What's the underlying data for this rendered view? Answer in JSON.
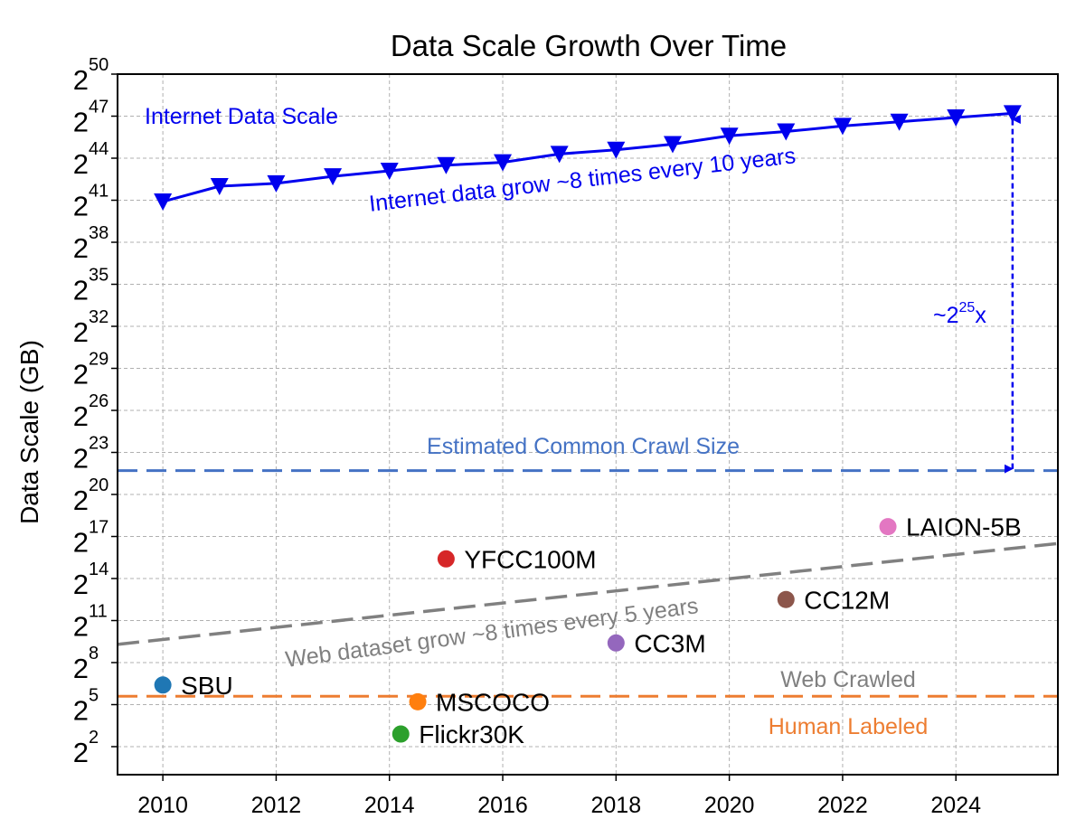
{
  "chart_data": {
    "type": "scatter",
    "title": "Data Scale Growth Over Time",
    "xlabel": "",
    "ylabel": "Data Scale (GB)",
    "xlim": [
      2009.2,
      2025.8
    ],
    "ylim": [
      0,
      50
    ],
    "y_scale": "log2",
    "x_ticks": [
      2010,
      2012,
      2014,
      2016,
      2018,
      2020,
      2022,
      2024
    ],
    "x_tick_labels": [
      "2010",
      "2012",
      "2014",
      "2016",
      "2018",
      "2020",
      "2022",
      "2024"
    ],
    "y_ticks": [
      2,
      5,
      8,
      11,
      14,
      17,
      20,
      23,
      26,
      29,
      32,
      35,
      38,
      41,
      44,
      47,
      50
    ],
    "y_tick_base": "2",
    "y_tick_exponents": [
      "2",
      "5",
      "8",
      "11",
      "14",
      "17",
      "20",
      "23",
      "26",
      "29",
      "32",
      "35",
      "38",
      "41",
      "44",
      "47",
      "50"
    ],
    "grid": true,
    "internet_series": {
      "name": "Internet Data Scale",
      "color": "#0000ee",
      "marker": "down-triangle",
      "x": [
        2010,
        2011,
        2012,
        2013,
        2014,
        2015,
        2016,
        2017,
        2018,
        2019,
        2020,
        2021,
        2022,
        2023,
        2024,
        2025
      ],
      "y": [
        40.9,
        42.0,
        42.2,
        42.7,
        43.1,
        43.5,
        43.7,
        44.3,
        44.6,
        45.0,
        45.6,
        45.9,
        46.3,
        46.6,
        46.9,
        47.2
      ]
    },
    "datasets": [
      {
        "name": "SBU",
        "x": 2010.0,
        "y": 6.4,
        "color": "#1f77b4"
      },
      {
        "name": "MSCOCO",
        "x": 2014.5,
        "y": 5.2,
        "color": "#ff7f0e"
      },
      {
        "name": "Flickr30K",
        "x": 2014.2,
        "y": 2.9,
        "color": "#2ca02c"
      },
      {
        "name": "YFCC100M",
        "x": 2015.0,
        "y": 15.4,
        "color": "#d62728"
      },
      {
        "name": "CC3M",
        "x": 2018.0,
        "y": 9.4,
        "color": "#9467bd"
      },
      {
        "name": "CC12M",
        "x": 2021.0,
        "y": 12.5,
        "color": "#8c564b"
      },
      {
        "name": "LAION-5B",
        "x": 2022.8,
        "y": 17.7,
        "color": "#e377c2"
      }
    ],
    "reference_lines": [
      {
        "name": "Estimated Common Crawl Size",
        "y": 21.7,
        "color": "#4472c4",
        "style": "dashed"
      },
      {
        "name": "Human Labeled",
        "y": 5.6,
        "color": "#ed7d31",
        "style": "dashed"
      }
    ],
    "web_trend_line": {
      "x": [
        2009.2,
        2025.8
      ],
      "y": [
        9.3,
        16.5
      ],
      "color": "#808080",
      "style": "dashed"
    },
    "gap_arrow": {
      "x": 2025,
      "y_from": 21.7,
      "y_to": 46.9,
      "color": "#0000ee"
    },
    "annotations": {
      "internet_label": "Internet Data Scale",
      "internet_growth": "Internet data grow ~8 times every 10 years",
      "gap_prefix": "~2",
      "gap_exponent": "25",
      "gap_suffix": "x",
      "common_crawl": "Estimated Common Crawl Size",
      "web_growth": "Web dataset grow ~8 times every 5 years",
      "web_crawled": "Web Crawled",
      "human_labeled": "Human Labeled"
    }
  }
}
